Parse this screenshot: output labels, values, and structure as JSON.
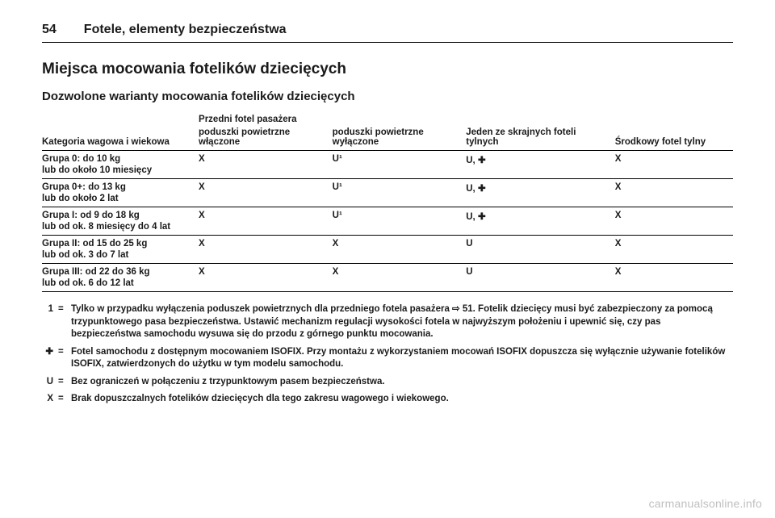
{
  "header": {
    "page_number": "54",
    "chapter": "Fotele, elementy bezpieczeństwa"
  },
  "title": "Miejsca mocowania fotelików dziecięcych",
  "subtitle": "Dozwolone warianty mocowania fotelików dziecięcych",
  "table": {
    "column_header_cat": "Kategoria wagowa i wiekowa",
    "span_header": "Przedni fotel pasażera",
    "col_a": "poduszki powietrzne włączone",
    "col_b": "poduszki powietrzne wyłączone",
    "col_c": "Jeden ze skrajnych foteli tylnych",
    "col_d": "Środkowy fotel tylny",
    "rows": [
      {
        "cat1": "Grupa 0: do 10 kg",
        "cat2": "lub do około 10 miesięcy",
        "a": "X",
        "b": "U¹",
        "c": "U, ✚",
        "d": "X"
      },
      {
        "cat1": "Grupa 0+: do 13 kg",
        "cat2": "lub do około 2 lat",
        "a": "X",
        "b": "U¹",
        "c": "U, ✚",
        "d": "X"
      },
      {
        "cat1": "Grupa I: od 9 do 18 kg",
        "cat2": "lub od ok. 8 miesięcy do 4 lat",
        "a": "X",
        "b": "U¹",
        "c": "U, ✚",
        "d": "X"
      },
      {
        "cat1": "Grupa II: od 15 do 25 kg",
        "cat2": "lub od ok. 3 do 7 lat",
        "a": "X",
        "b": "X",
        "c": "U",
        "d": "X"
      },
      {
        "cat1": "Grupa III: od 22 do 36 kg",
        "cat2": "lub od ok. 6 do 12 lat",
        "a": "X",
        "b": "X",
        "c": "U",
        "d": "X"
      }
    ]
  },
  "footnotes": [
    {
      "key": "1",
      "text": "Tylko w przypadku wyłączenia poduszek powietrznych dla przedniego fotela pasażera ⇨ 51. Fotelik dziecięcy musi być zabezpieczony za pomocą trzypunktowego pasa bezpieczeństwa. Ustawić mechanizm regulacji wysokości fotela w najwyższym położeniu i upewnić się, czy pas bezpieczeństwa samochodu wysuwa się do przodu z górnego punktu mocowania."
    },
    {
      "key": "✚",
      "text": "Fotel samochodu z dostępnym mocowaniem ISOFIX. Przy montażu z wykorzystaniem mocowań ISOFIX dopuszcza się wyłącznie używanie fotelików ISOFIX, zatwierdzonych do użytku w tym modelu samochodu."
    },
    {
      "key": "U",
      "text": "Bez ograniczeń w połączeniu z trzypunktowym pasem bezpieczeństwa."
    },
    {
      "key": "X",
      "text": "Brak dopuszczalnych fotelików dziecięcych dla tego zakresu wagowego i wiekowego."
    }
  ],
  "watermark": "carmanualsonline.info"
}
